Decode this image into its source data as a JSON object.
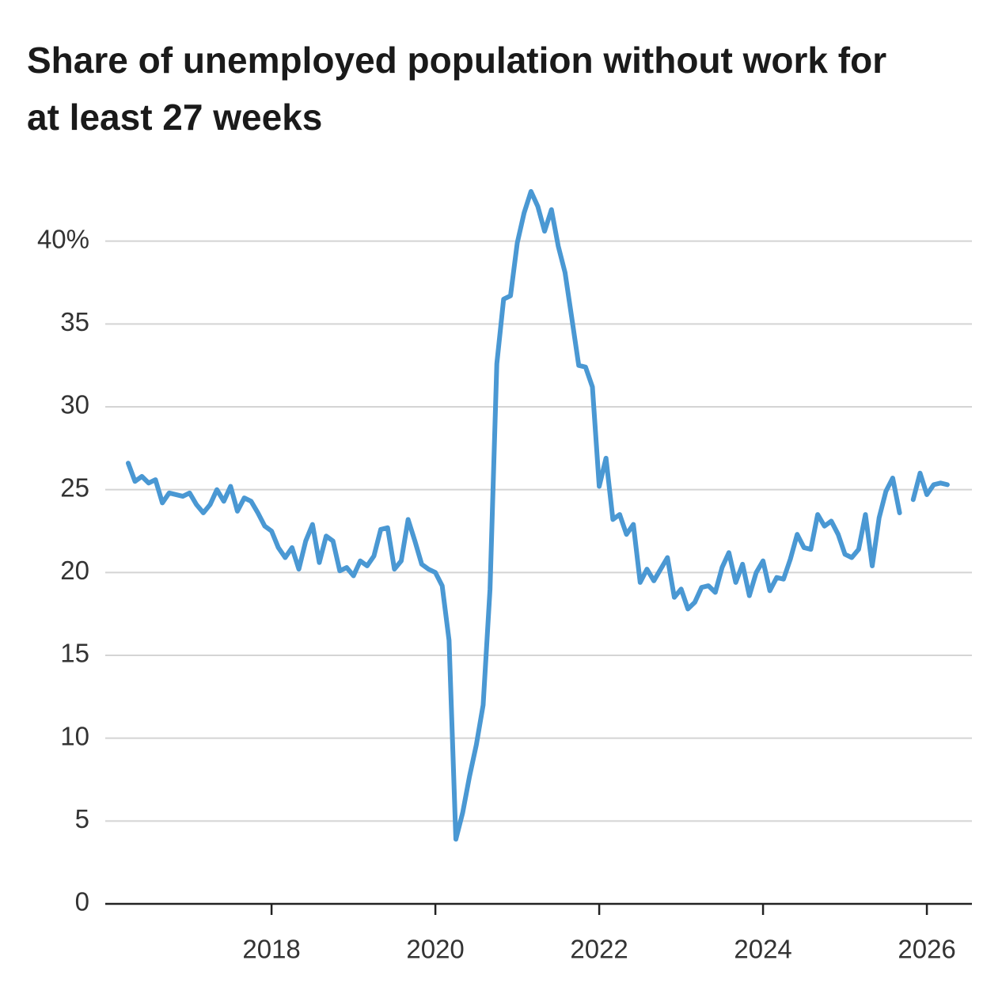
{
  "chart_data": {
    "type": "line",
    "title": "Share of unemployed population without work for at least 27 weeks",
    "color": "#4a98d3",
    "x": [
      2016.25,
      2016.333,
      2016.417,
      2016.5,
      2016.583,
      2016.667,
      2016.75,
      2016.833,
      2016.917,
      2017,
      2017.083,
      2017.167,
      2017.25,
      2017.333,
      2017.417,
      2017.5,
      2017.583,
      2017.667,
      2017.75,
      2017.833,
      2017.917,
      2018,
      2018.083,
      2018.167,
      2018.25,
      2018.333,
      2018.417,
      2018.5,
      2018.583,
      2018.667,
      2018.75,
      2018.833,
      2018.917,
      2019,
      2019.083,
      2019.167,
      2019.25,
      2019.333,
      2019.417,
      2019.5,
      2019.583,
      2019.667,
      2019.75,
      2019.833,
      2019.917,
      2020,
      2020.083,
      2020.167,
      2020.25,
      2020.333,
      2020.417,
      2020.5,
      2020.583,
      2020.667,
      2020.75,
      2020.833,
      2020.917,
      2021,
      2021.083,
      2021.167,
      2021.25,
      2021.333,
      2021.417,
      2021.5,
      2021.583,
      2021.667,
      2021.75,
      2021.833,
      2021.917,
      2022,
      2022.083,
      2022.167,
      2022.25,
      2022.333,
      2022.417,
      2022.5,
      2022.583,
      2022.667,
      2022.75,
      2022.833,
      2022.917,
      2023,
      2023.083,
      2023.167,
      2023.25,
      2023.333,
      2023.417,
      2023.5,
      2023.583,
      2023.667,
      2023.75,
      2023.833,
      2023.917,
      2024,
      2024.083,
      2024.167,
      2024.25,
      2024.333,
      2024.417,
      2024.5,
      2024.583,
      2024.667,
      2024.75,
      2024.833,
      2024.917,
      2025,
      2025.083,
      2025.167,
      2025.25,
      2025.333,
      2025.417,
      2025.5,
      2025.583,
      2025.667,
      2025.75,
      2025.833,
      2025.917,
      2026,
      2026.083,
      2026.167,
      2026.25
    ],
    "values": [
      26.6,
      25.5,
      25.8,
      25.4,
      25.6,
      24.2,
      24.8,
      24.7,
      24.6,
      24.8,
      24.1,
      23.6,
      24.1,
      25.0,
      24.3,
      25.2,
      23.7,
      24.5,
      24.3,
      23.6,
      22.8,
      22.5,
      21.5,
      20.9,
      21.5,
      20.2,
      21.9,
      22.9,
      20.6,
      22.2,
      21.9,
      20.1,
      20.3,
      19.8,
      20.7,
      20.4,
      21.0,
      22.6,
      22.7,
      20.2,
      20.7,
      23.2,
      21.9,
      20.5,
      20.2,
      20.0,
      19.2,
      15.9,
      3.9,
      5.5,
      7.7,
      9.6,
      12.0,
      19.0,
      32.6,
      36.5,
      36.7,
      39.9,
      41.7,
      43.0,
      42.1,
      40.6,
      41.9,
      39.7,
      38.1,
      35.3,
      32.5,
      32.4,
      31.2,
      25.2,
      26.9,
      23.2,
      23.5,
      22.3,
      22.9,
      19.4,
      20.2,
      19.5,
      20.2,
      20.9,
      18.5,
      19.0,
      17.8,
      18.2,
      19.1,
      19.2,
      18.8,
      20.3,
      21.2,
      19.4,
      20.5,
      18.6,
      20.0,
      20.7,
      18.9,
      19.7,
      19.6,
      20.8,
      22.3,
      21.5,
      21.4,
      23.5,
      22.8,
      23.1,
      22.3,
      21.1,
      20.9,
      21.4,
      23.5,
      20.4,
      23.3,
      24.9,
      25.7,
      23.6,
      null,
      24.4,
      26.0,
      24.7,
      25.3,
      25.4,
      25.3
    ],
    "xlim": [
      2015.97,
      2026.55
    ],
    "xticks": [
      2018,
      2020,
      2022,
      2024,
      2026
    ],
    "ylim": [
      0,
      45
    ],
    "yticks": [
      0,
      5,
      10,
      15,
      20,
      25,
      30,
      35,
      {
        "value": 40,
        "label": "40%"
      }
    ],
    "grid": true
  }
}
